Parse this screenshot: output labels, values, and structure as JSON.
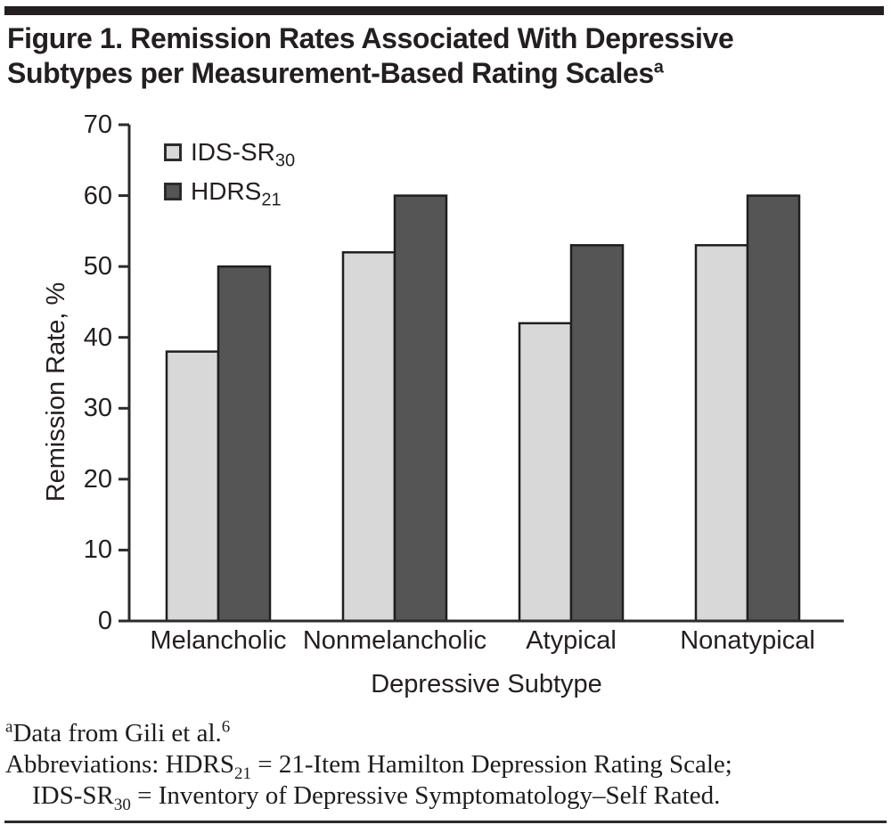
{
  "figure": {
    "title_line1": "Figure 1. Remission Rates Associated With Depressive",
    "title_line2": "Subtypes per Measurement-Based Rating Scales",
    "title_superscript": "a"
  },
  "chart_data": {
    "type": "bar",
    "title": "Figure 1. Remission Rates Associated With Depressive Subtypes per Measurement-Based Rating Scales",
    "categories": [
      "Melancholic",
      "Nonmelancholic",
      "Atypical",
      "Nonatypical"
    ],
    "series": [
      {
        "name": "IDS-SR30",
        "label_base": "IDS-SR",
        "label_sub": "30",
        "color": "#d8d8d8",
        "values": [
          38,
          52,
          42,
          53
        ]
      },
      {
        "name": "HDRS21",
        "label_base": "HDRS",
        "label_sub": "21",
        "color": "#555555",
        "values": [
          50,
          60,
          53,
          60
        ]
      }
    ],
    "xlabel": "Depressive Subtype",
    "ylabel": "Remission Rate, %",
    "ylim": [
      0,
      70
    ],
    "yticks": [
      0,
      10,
      20,
      30,
      40,
      50,
      60,
      70
    ],
    "grid": false,
    "legend_position": "upper-left-inside",
    "bar_border_color": "#1f1f1f",
    "axis_color": "#2b2b2b"
  },
  "footnote": {
    "line1_sup": "a",
    "line1_text": "Data from Gili et al.",
    "line1_ref": "6",
    "line2_pre": "Abbreviations: HDRS",
    "line2_sub": "21",
    "line2_post": " = 21-Item Hamilton Depression Rating Scale;",
    "line3_pre": "IDS-SR",
    "line3_sub": "30",
    "line3_post": " = Inventory of Depressive Symptomatology–Self Rated."
  }
}
